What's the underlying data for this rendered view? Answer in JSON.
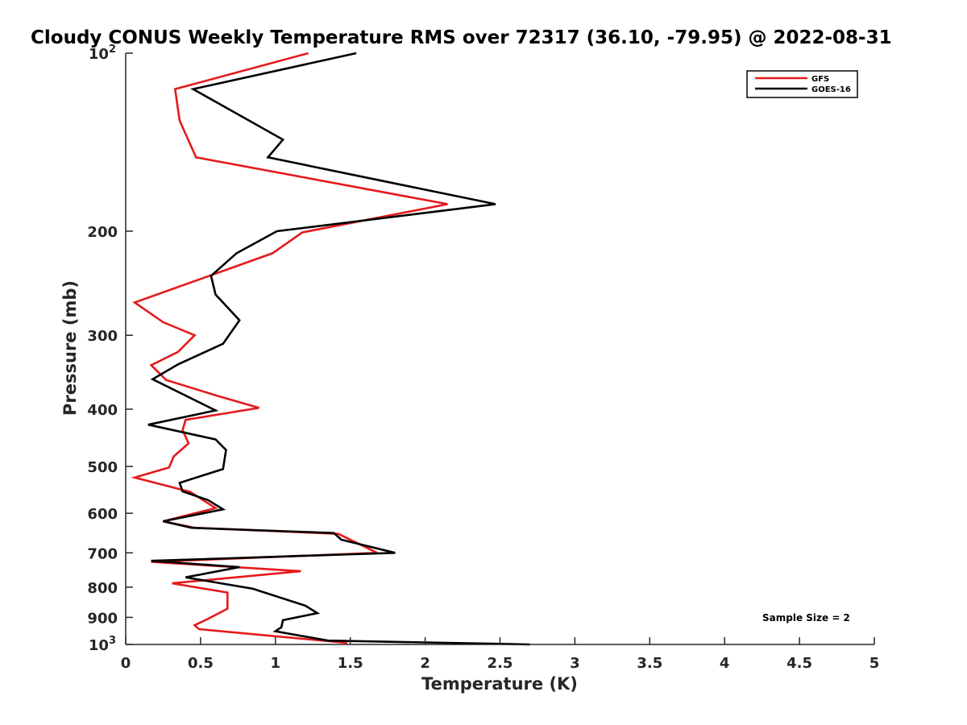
{
  "chart_data": {
    "type": "line",
    "title": "Cloudy CONUS Weekly Temperature RMS over 72317 (36.10, -79.95) @ 2022-08-31",
    "xlabel": "Temperature (K)",
    "ylabel": "Pressure (mb)",
    "xlim": [
      0,
      5
    ],
    "ylim": [
      100,
      1000
    ],
    "y_scale": "log",
    "y_reversed": true,
    "grid": false,
    "legend_position": "top-right",
    "annotation": "Sample Size = 2",
    "x_ticks": [
      "0",
      "0.5",
      "1",
      "1.5",
      "2",
      "2.5",
      "3",
      "3.5",
      "4",
      "4.5",
      "5"
    ],
    "x_tick_values": [
      0,
      0.5,
      1,
      1.5,
      2,
      2.5,
      3,
      3.5,
      4,
      4.5,
      5
    ],
    "y_ticks": [
      {
        "value": 100,
        "base": "10",
        "exp": "2"
      },
      {
        "value": 200,
        "base": "200",
        "exp": ""
      },
      {
        "value": 300,
        "base": "300",
        "exp": ""
      },
      {
        "value": 400,
        "base": "400",
        "exp": ""
      },
      {
        "value": 500,
        "base": "500",
        "exp": ""
      },
      {
        "value": 600,
        "base": "600",
        "exp": ""
      },
      {
        "value": 700,
        "base": "700",
        "exp": ""
      },
      {
        "value": 800,
        "base": "800",
        "exp": ""
      },
      {
        "value": 900,
        "base": "900",
        "exp": ""
      },
      {
        "value": 1000,
        "base": "10",
        "exp": "3"
      }
    ],
    "series": [
      {
        "name": "GFS",
        "color": "#e41a1c",
        "points": [
          [
            1.22,
            100
          ],
          [
            0.33,
            115
          ],
          [
            0.36,
            130
          ],
          [
            0.47,
            150
          ],
          [
            2.15,
            180
          ],
          [
            1.18,
            201
          ],
          [
            0.98,
            218
          ],
          [
            0.06,
            264
          ],
          [
            0.25,
            285
          ],
          [
            0.46,
            300
          ],
          [
            0.35,
            320
          ],
          [
            0.17,
            337
          ],
          [
            0.27,
            357
          ],
          [
            0.6,
            379
          ],
          [
            0.89,
            398
          ],
          [
            0.4,
            417
          ],
          [
            0.38,
            434
          ],
          [
            0.42,
            457
          ],
          [
            0.32,
            481
          ],
          [
            0.29,
            502
          ],
          [
            0.06,
            522
          ],
          [
            0.43,
            552
          ],
          [
            0.6,
            588
          ],
          [
            0.25,
            619
          ],
          [
            0.46,
            635
          ],
          [
            1.42,
            650
          ],
          [
            1.68,
            700
          ],
          [
            0.17,
            725
          ],
          [
            1.17,
            752
          ],
          [
            0.31,
            788
          ],
          [
            0.68,
            817
          ],
          [
            0.68,
            870
          ],
          [
            0.55,
            905
          ],
          [
            0.46,
            928
          ],
          [
            0.49,
            942
          ],
          [
            1.48,
            994
          ]
        ]
      },
      {
        "name": "GOES-16",
        "color": "#000000",
        "points": [
          [
            1.54,
            100
          ],
          [
            0.45,
            115
          ],
          [
            1.05,
            140
          ],
          [
            0.95,
            150
          ],
          [
            2.47,
            180
          ],
          [
            1.01,
            200
          ],
          [
            0.74,
            218
          ],
          [
            0.57,
            238
          ],
          [
            0.6,
            256
          ],
          [
            0.76,
            283
          ],
          [
            0.65,
            310
          ],
          [
            0.35,
            336
          ],
          [
            0.18,
            356
          ],
          [
            0.6,
            402
          ],
          [
            0.15,
            425
          ],
          [
            0.6,
            450
          ],
          [
            0.67,
            469
          ],
          [
            0.65,
            505
          ],
          [
            0.36,
            533
          ],
          [
            0.38,
            551
          ],
          [
            0.55,
            570
          ],
          [
            0.65,
            591
          ],
          [
            0.25,
            619
          ],
          [
            0.44,
            635
          ],
          [
            1.39,
            648
          ],
          [
            1.44,
            665
          ],
          [
            1.8,
            700
          ],
          [
            0.17,
            722
          ],
          [
            0.76,
            740
          ],
          [
            0.4,
            770
          ],
          [
            0.85,
            805
          ],
          [
            1.2,
            860
          ],
          [
            1.28,
            885
          ],
          [
            1.05,
            910
          ],
          [
            1.04,
            935
          ],
          [
            1.0,
            950
          ],
          [
            1.35,
            985
          ],
          [
            2.7,
            1000
          ]
        ]
      }
    ]
  }
}
